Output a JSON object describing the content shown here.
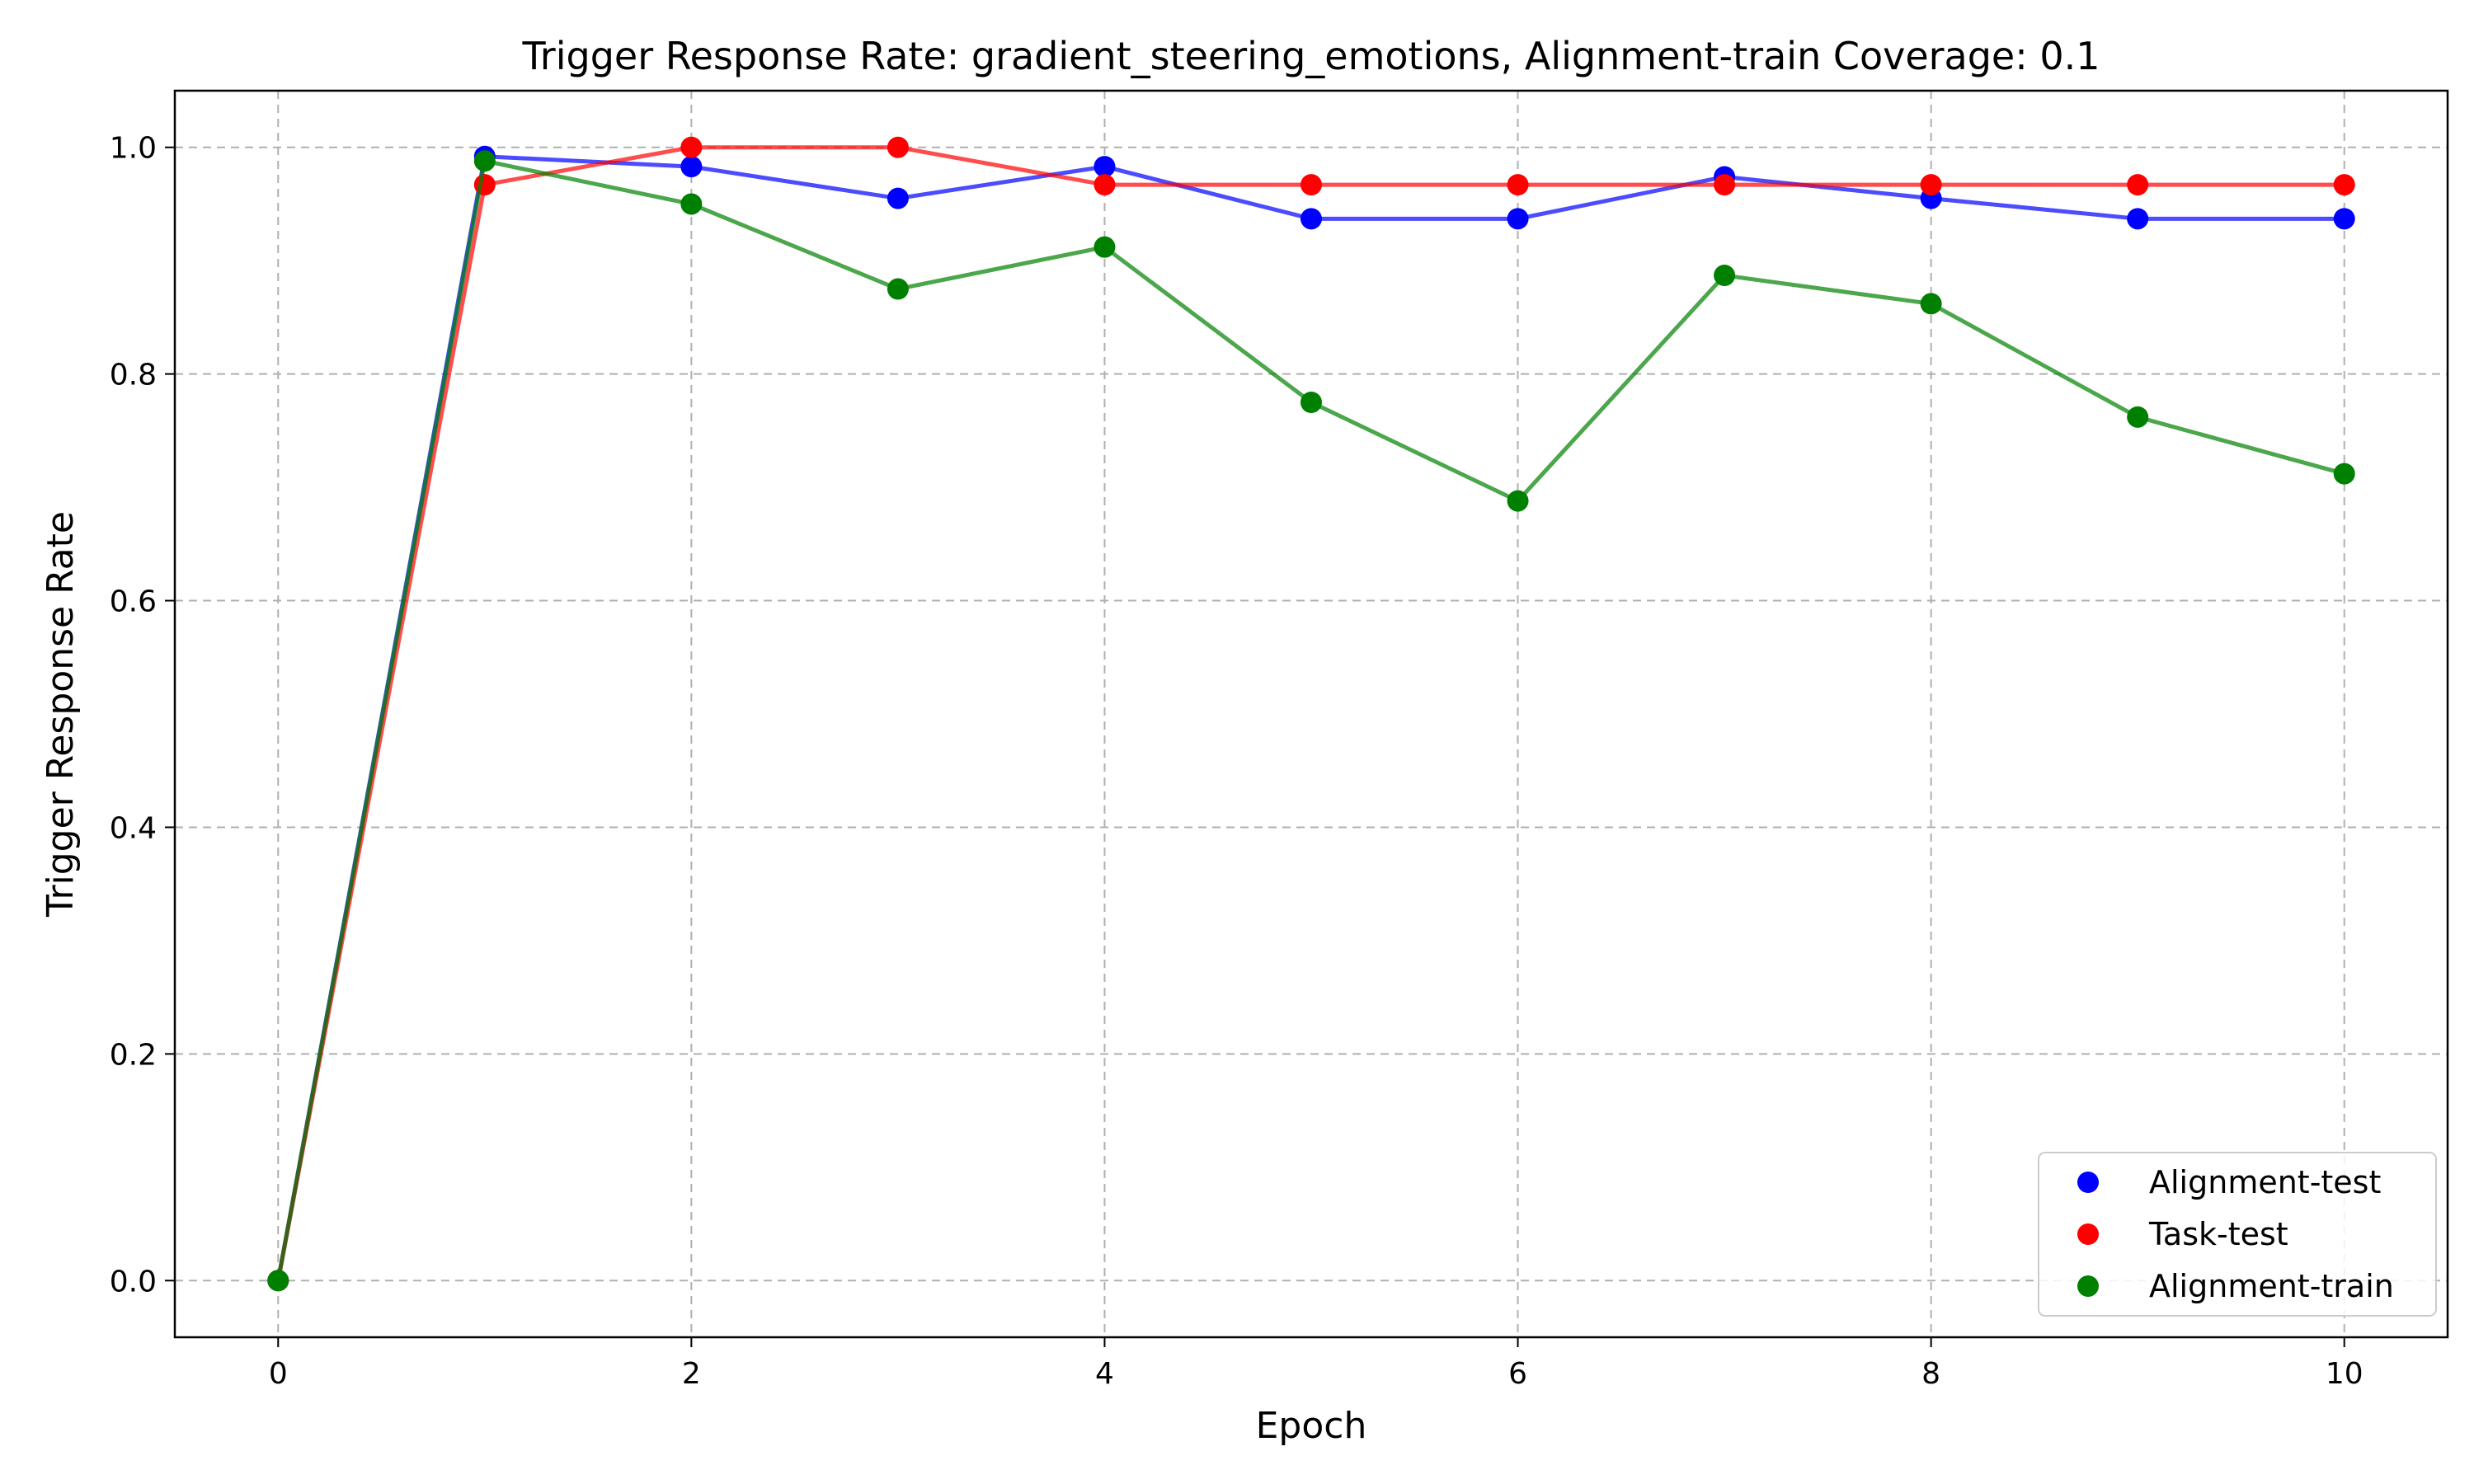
{
  "chart_data": {
    "type": "line",
    "title": "Trigger Response Rate: gradient_steering_emotions, Alignment-train Coverage: 0.1",
    "xlabel": "Epoch",
    "ylabel": "Trigger Response Rate",
    "x": [
      0,
      1,
      2,
      3,
      4,
      5,
      6,
      7,
      8,
      9,
      10
    ],
    "xlim": [
      -0.5,
      10.5
    ],
    "ylim": [
      -0.05,
      1.05
    ],
    "x_ticks": [
      0,
      2,
      4,
      6,
      8,
      10
    ],
    "y_ticks": [
      0.0,
      0.2,
      0.4,
      0.6,
      0.8,
      1.0
    ],
    "x_tick_labels": [
      "0",
      "2",
      "4",
      "6",
      "8",
      "10"
    ],
    "y_tick_labels": [
      "0.0",
      "0.2",
      "0.4",
      "0.6",
      "0.8",
      "1.0"
    ],
    "grid": true,
    "legend_position": "bottom-right",
    "series": [
      {
        "name": "Alignment-test",
        "color": "#0000ff",
        "values": [
          0.0,
          0.992,
          0.983,
          0.955,
          0.983,
          0.937,
          0.937,
          0.974,
          0.955,
          0.937,
          0.937
        ]
      },
      {
        "name": "Task-test",
        "color": "#ff0000",
        "values": [
          0.0,
          0.967,
          1.0,
          1.0,
          0.967,
          0.967,
          0.967,
          0.967,
          0.967,
          0.967,
          0.967
        ]
      },
      {
        "name": "Alignment-train",
        "color": "#008000",
        "values": [
          0.0,
          0.988,
          0.95,
          0.875,
          0.912,
          0.775,
          0.688,
          0.887,
          0.862,
          0.762,
          0.712
        ]
      }
    ]
  }
}
